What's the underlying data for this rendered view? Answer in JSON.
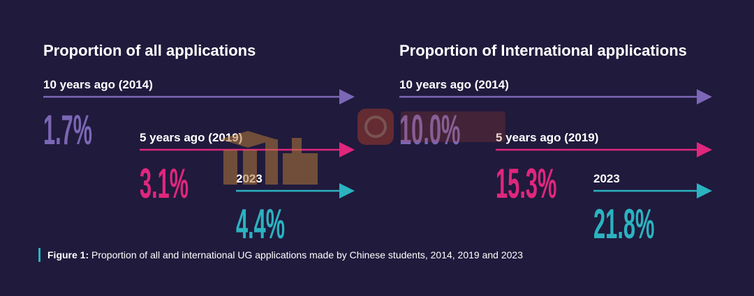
{
  "chart_data": [
    {
      "type": "bar",
      "title": "Proportion of all applications",
      "categories": [
        "10 years ago (2014)",
        "5 years ago (2019)",
        "2023"
      ],
      "values": [
        1.7,
        3.1,
        4.4
      ],
      "value_labels": [
        "1.7%",
        "3.1%",
        "4.4%"
      ],
      "colors": [
        "#7b67b5",
        "#e0267d",
        "#2bb3c0"
      ]
    },
    {
      "type": "bar",
      "title": "Proportion of International applications",
      "categories": [
        "10 years ago (2014)",
        "5 years ago (2019)",
        "2023"
      ],
      "values": [
        10.0,
        15.3,
        21.8
      ],
      "value_labels": [
        "10.0%",
        "15.3%",
        "21.8%"
      ],
      "colors": [
        "#7b67b5",
        "#e0267d",
        "#2bb3c0"
      ]
    }
  ],
  "caption": {
    "bold": "Figure 1:",
    "text": " Proportion of all and international UG applications made by Chinese students, 2014, 2019 and 2023"
  },
  "colors": {
    "background": "#201a3c",
    "accent_caption_bar": "#2bb3c0"
  }
}
